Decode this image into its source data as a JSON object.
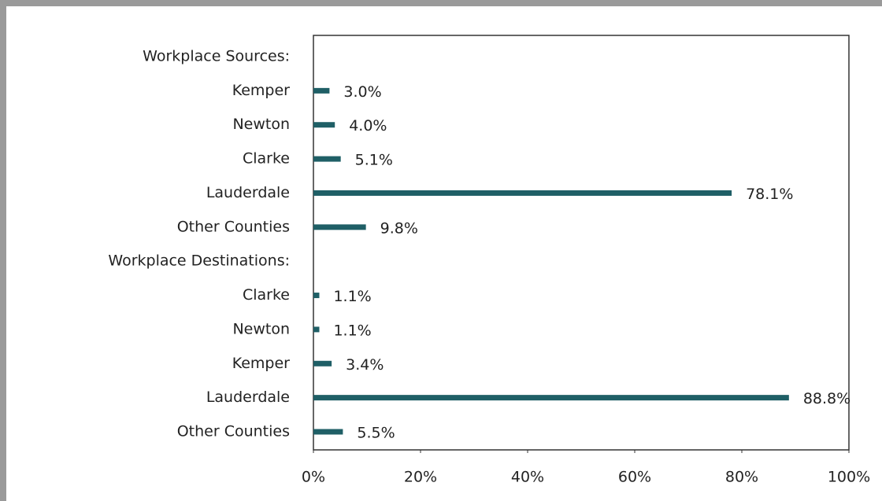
{
  "chart_data": {
    "type": "bar",
    "orientation": "horizontal",
    "categories": [
      "Workplace Sources:",
      "Kemper",
      "Newton",
      "Clarke",
      "Lauderdale",
      "Other Counties",
      "Workplace Destinations:",
      "Clarke",
      "Newton",
      "Kemper",
      "Lauderdale",
      "Other Counties"
    ],
    "values": [
      null,
      3.0,
      4.0,
      5.1,
      78.1,
      9.8,
      null,
      1.1,
      1.1,
      3.4,
      88.8,
      5.5
    ],
    "value_labels": [
      null,
      "3.0%",
      "4.0%",
      "5.1%",
      "78.1%",
      "9.8%",
      null,
      "1.1%",
      "1.1%",
      "3.4%",
      "88.8%",
      "5.5%"
    ],
    "color": "#1f5f66",
    "xlim": [
      0,
      100
    ],
    "xticks": [
      {
        "value": 0,
        "label": "0%"
      },
      {
        "value": 20,
        "label": "20%"
      },
      {
        "value": 40,
        "label": "40%"
      },
      {
        "value": 60,
        "label": "60%"
      },
      {
        "value": 80,
        "label": "80%"
      },
      {
        "value": 100,
        "label": "100%"
      }
    ]
  }
}
